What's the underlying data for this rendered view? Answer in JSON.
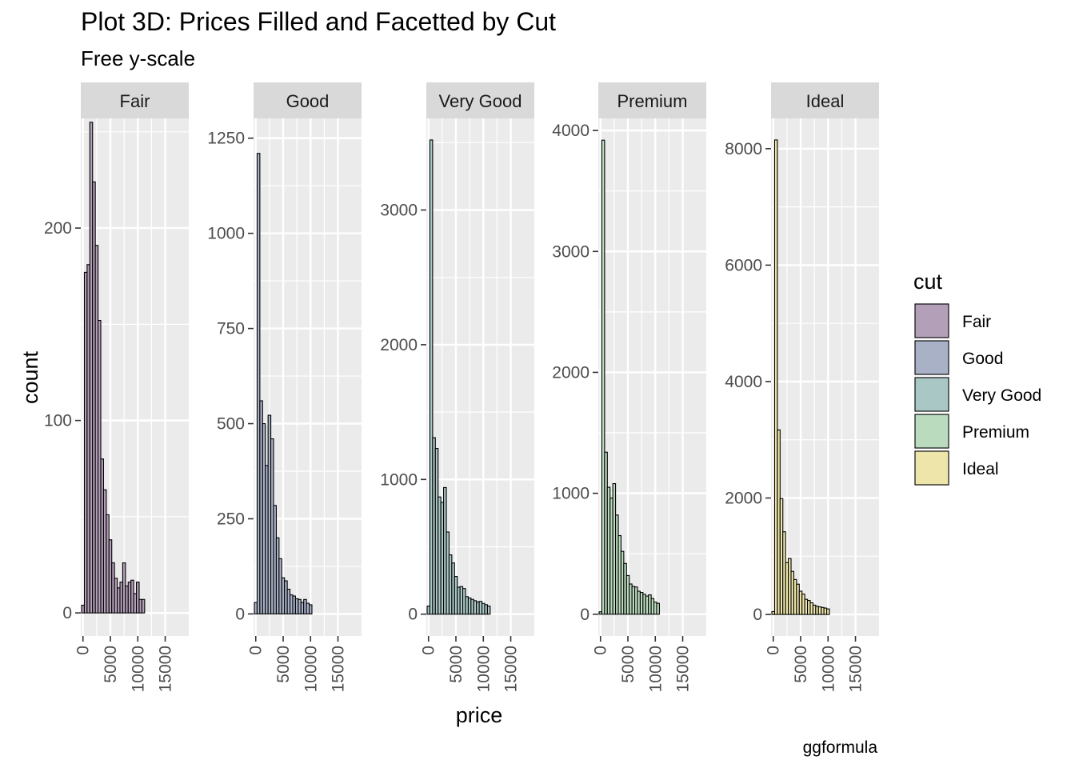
{
  "chart_data": {
    "type": "bar",
    "title": "Plot 3D: Prices Filled and Facetted by Cut",
    "subtitle": "Free y-scale",
    "xlabel": "price",
    "ylabel": "count",
    "caption": "ggformula",
    "legend": {
      "title": "cut",
      "placement": "right"
    },
    "binwidth": 500,
    "x_start": 0,
    "xlim": [
      -400,
      19300
    ],
    "x_ticks": [
      0,
      5000,
      10000,
      15000
    ],
    "x_tick_labels": [
      "0",
      "5000",
      "10000",
      "15000"
    ],
    "grid": true,
    "facets": [
      {
        "name": "Fair",
        "color": "#B39FB8",
        "ylim": [
          -12,
          257
        ],
        "y_ticks": [
          0,
          100,
          200
        ],
        "y_tick_labels": [
          "0",
          "100",
          "200"
        ],
        "values": [
          4,
          177,
          181,
          255,
          224,
          191,
          152,
          80,
          64,
          51,
          38,
          26,
          18,
          13,
          16,
          26,
          14,
          16,
          17,
          10,
          16,
          7,
          7
        ]
      },
      {
        "name": "Good",
        "color": "#A9B1C7",
        "ylim": [
          -58,
          1302
        ],
        "y_ticks": [
          0,
          250,
          500,
          750,
          1000,
          1250
        ],
        "y_tick_labels": [
          "0",
          "250",
          "500",
          "750",
          "1000",
          "1250"
        ],
        "values": [
          30,
          1210,
          560,
          500,
          390,
          522,
          460,
          285,
          200,
          145,
          95,
          87,
          65,
          50,
          47,
          40,
          38,
          30,
          38,
          28,
          24
        ]
      },
      {
        "name": "Very Good",
        "color": "#A9C7C5",
        "ylim": [
          -162,
          3680
        ],
        "y_ticks": [
          0,
          1000,
          2000,
          3000
        ],
        "y_tick_labels": [
          "0",
          "1000",
          "2000",
          "3000"
        ],
        "values": [
          60,
          3520,
          1310,
          1230,
          870,
          830,
          940,
          610,
          440,
          380,
          280,
          200,
          205,
          190,
          130,
          120,
          110,
          100,
          90,
          95,
          80,
          70,
          60
        ]
      },
      {
        "name": "Premium",
        "color": "#BBDBBE",
        "ylim": [
          -180,
          4100
        ],
        "y_ticks": [
          0,
          1000,
          2000,
          3000,
          4000
        ],
        "y_tick_labels": [
          "0",
          "1000",
          "2000",
          "3000",
          "4000"
        ],
        "values": [
          20,
          3920,
          1340,
          1050,
          960,
          1080,
          820,
          650,
          520,
          420,
          320,
          250,
          230,
          225,
          190,
          180,
          165,
          150,
          160,
          130,
          100,
          90
        ]
      },
      {
        "name": "Ideal",
        "color": "#EDE5A9",
        "ylim": [
          -370,
          8520
        ],
        "y_ticks": [
          0,
          2000,
          4000,
          6000,
          8000
        ],
        "y_tick_labels": [
          "0",
          "2000",
          "4000",
          "6000",
          "8000"
        ],
        "values": [
          50,
          8150,
          3170,
          1990,
          1420,
          890,
          960,
          740,
          600,
          520,
          400,
          350,
          260,
          240,
          200,
          160,
          140,
          130,
          120,
          110,
          95
        ]
      }
    ]
  }
}
